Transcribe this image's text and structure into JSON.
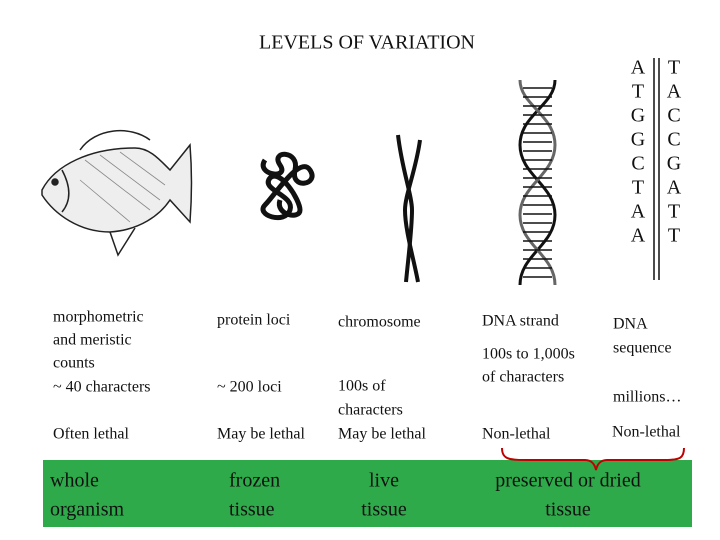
{
  "title": "LEVELS OF VARIATION",
  "sequence": {
    "left": [
      "A",
      "T",
      "G",
      "G",
      "C",
      "T",
      "A",
      "A"
    ],
    "right": [
      "T",
      "A",
      "C",
      "C",
      "G",
      "A",
      "T",
      "T"
    ]
  },
  "labels": [
    {
      "lines": [
        "morphometric",
        "and meristic",
        "counts"
      ]
    },
    {
      "lines": [
        "protein loci"
      ]
    },
    {
      "lines": [
        "chromosome"
      ]
    },
    {
      "lines": [
        "DNA strand"
      ]
    },
    {
      "lines": [
        "DNA",
        "sequence"
      ]
    }
  ],
  "counts": [
    {
      "lines": [
        "~ 40 characters"
      ]
    },
    {
      "lines": [
        "~ 200 loci"
      ]
    },
    {
      "lines": [
        "100s of",
        "characters"
      ]
    },
    {
      "lines": [
        "100s to 1,000s",
        "of characters"
      ]
    },
    {
      "lines": [
        "millions…"
      ]
    }
  ],
  "lethality": [
    {
      "lines": [
        "Often lethal"
      ]
    },
    {
      "lines": [
        "May be lethal"
      ]
    },
    {
      "lines": [
        "May be lethal"
      ]
    },
    {
      "lines": [
        "Non-lethal"
      ]
    },
    {
      "lines": [
        "Non-lethal"
      ]
    }
  ],
  "samples": [
    {
      "lines": [
        "whole",
        "organism"
      ]
    },
    {
      "lines": [
        "frozen",
        "tissue"
      ]
    },
    {
      "lines": [
        "live",
        "tissue"
      ]
    },
    {
      "lines": [
        "preserved or dried",
        "tissue"
      ]
    }
  ]
}
